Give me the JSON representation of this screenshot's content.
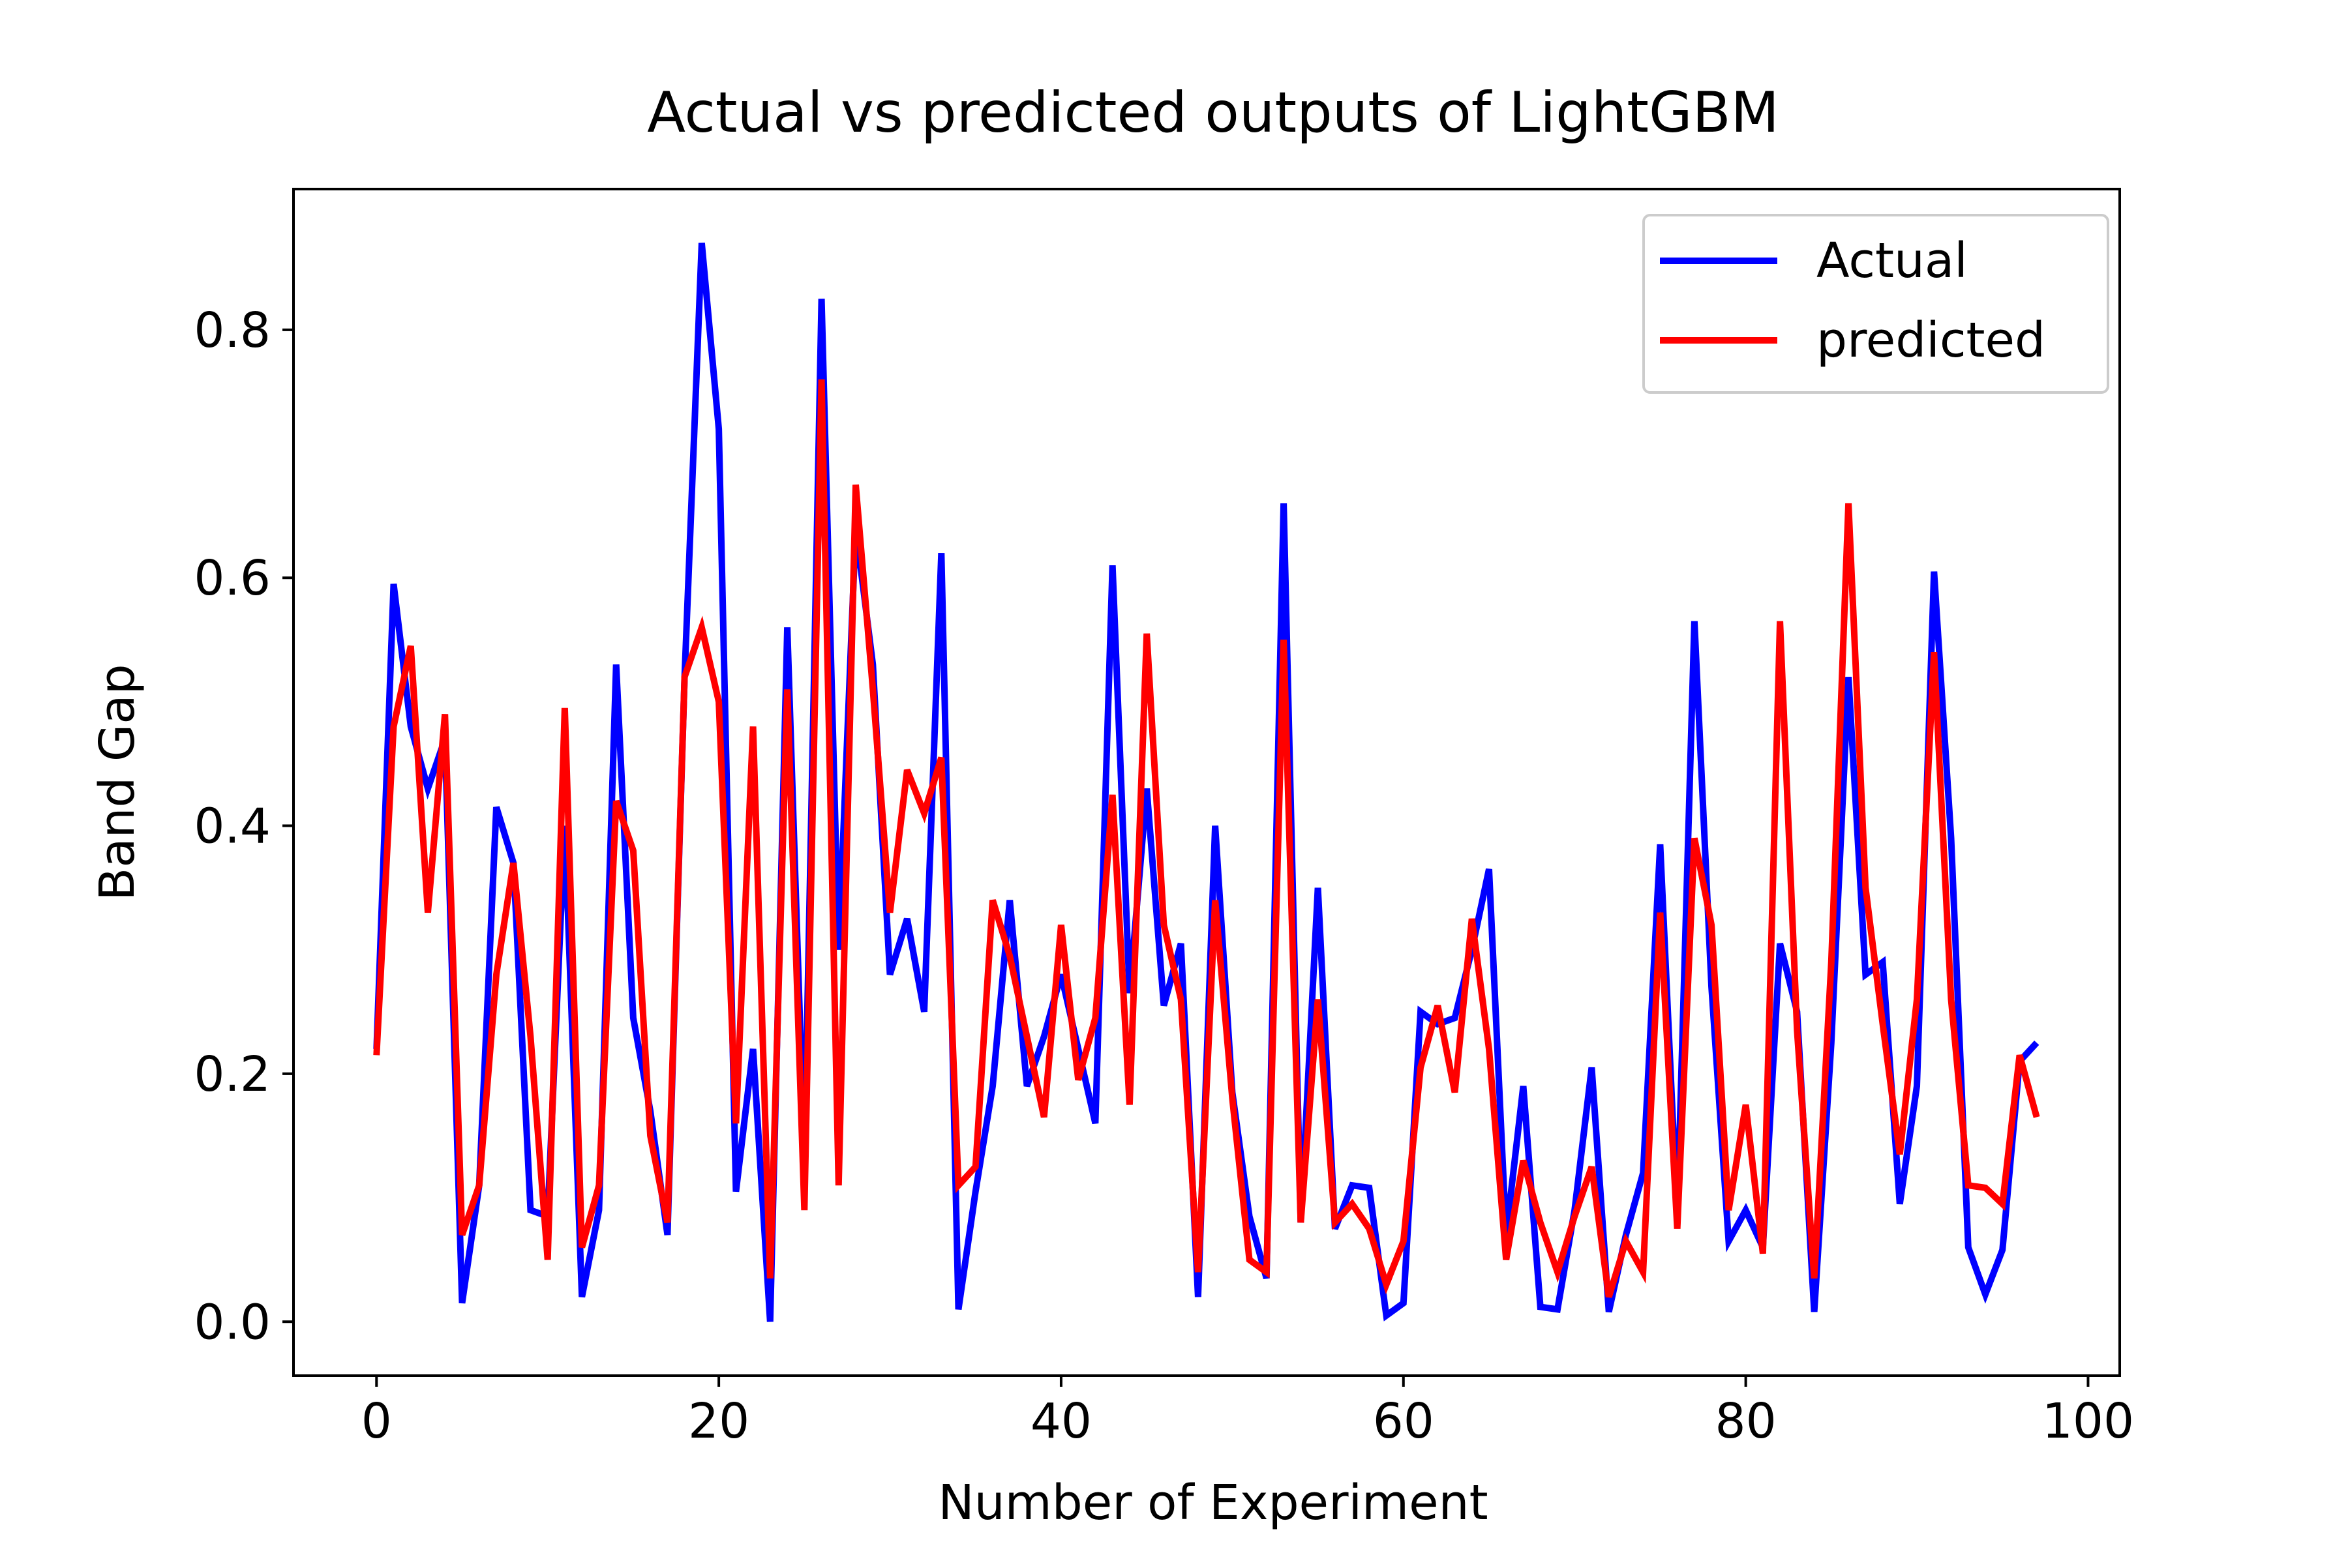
{
  "chart_data": {
    "type": "line",
    "title": "Actual vs predicted outputs of LightGBM",
    "xlabel": "Number of Experiment",
    "ylabel": "Band Gap",
    "xlim": [
      -4.85,
      101.85
    ],
    "ylim": [
      -0.0435,
      0.9135
    ],
    "xticks": [
      0,
      20,
      40,
      60,
      80,
      100
    ],
    "yticks": [
      0.0,
      0.2,
      0.4,
      0.6,
      0.8
    ],
    "xtick_labels": [
      "0",
      "20",
      "40",
      "60",
      "80",
      "100"
    ],
    "ytick_labels": [
      "0.0",
      "0.2",
      "0.4",
      "0.6",
      "0.8"
    ],
    "grid": false,
    "legend_position": "top-right",
    "x": [
      0,
      1,
      2,
      3,
      4,
      5,
      6,
      7,
      8,
      9,
      10,
      11,
      12,
      13,
      14,
      15,
      16,
      17,
      18,
      19,
      20,
      21,
      22,
      23,
      24,
      25,
      26,
      27,
      28,
      29,
      30,
      31,
      32,
      33,
      34,
      35,
      36,
      37,
      38,
      39,
      40,
      41,
      42,
      43,
      44,
      45,
      46,
      47,
      48,
      49,
      50,
      51,
      52,
      53,
      54,
      55,
      56,
      57,
      58,
      59,
      60,
      61,
      62,
      63,
      64,
      65,
      66,
      67,
      68,
      69,
      70,
      71,
      72,
      73,
      74,
      75,
      76,
      77,
      78,
      79,
      80,
      81,
      82,
      83,
      84,
      85,
      86,
      87,
      88,
      89,
      90,
      91,
      92,
      93,
      94,
      95,
      96,
      97
    ],
    "series": [
      {
        "name": "Actual",
        "color": "#0000ff",
        "values": [
          0.22,
          0.595,
          0.48,
          0.43,
          0.47,
          0.015,
          0.11,
          0.415,
          0.37,
          0.09,
          0.085,
          0.4,
          0.02,
          0.09,
          0.53,
          0.245,
          0.17,
          0.07,
          0.52,
          0.87,
          0.72,
          0.105,
          0.22,
          0.0,
          0.56,
          0.13,
          0.825,
          0.3,
          0.64,
          0.53,
          0.28,
          0.325,
          0.25,
          0.62,
          0.01,
          0.105,
          0.19,
          0.34,
          0.19,
          0.23,
          0.28,
          0.22,
          0.16,
          0.61,
          0.265,
          0.43,
          0.255,
          0.305,
          0.02,
          0.4,
          0.185,
          0.085,
          0.035,
          0.66,
          0.08,
          0.35,
          0.075,
          0.11,
          0.108,
          0.005,
          0.015,
          0.25,
          0.24,
          0.245,
          0.3,
          0.365,
          0.07,
          0.19,
          0.012,
          0.01,
          0.09,
          0.205,
          0.008,
          0.07,
          0.12,
          0.385,
          0.085,
          0.565,
          0.27,
          0.065,
          0.09,
          0.06,
          0.305,
          0.25,
          0.008,
          0.225,
          0.52,
          0.28,
          0.29,
          0.095,
          0.19,
          0.605,
          0.39,
          0.06,
          0.022,
          0.058,
          0.21,
          0.225
        ]
      },
      {
        "name": "predicted",
        "color": "#ff0000",
        "values": [
          0.215,
          0.48,
          0.545,
          0.33,
          0.49,
          0.07,
          0.11,
          0.28,
          0.37,
          0.23,
          0.05,
          0.495,
          0.06,
          0.11,
          0.42,
          0.38,
          0.15,
          0.08,
          0.52,
          0.56,
          0.5,
          0.16,
          0.48,
          0.035,
          0.51,
          0.09,
          0.76,
          0.11,
          0.675,
          0.51,
          0.33,
          0.445,
          0.41,
          0.455,
          0.11,
          0.125,
          0.34,
          0.295,
          0.23,
          0.165,
          0.32,
          0.195,
          0.245,
          0.425,
          0.175,
          0.555,
          0.32,
          0.26,
          0.04,
          0.34,
          0.18,
          0.05,
          0.04,
          0.55,
          0.08,
          0.26,
          0.08,
          0.095,
          0.075,
          0.03,
          0.065,
          0.205,
          0.255,
          0.185,
          0.325,
          0.22,
          0.05,
          0.13,
          0.08,
          0.04,
          0.085,
          0.125,
          0.02,
          0.065,
          0.04,
          0.33,
          0.075,
          0.39,
          0.32,
          0.09,
          0.175,
          0.055,
          0.565,
          0.235,
          0.035,
          0.29,
          0.66,
          0.35,
          0.24,
          0.135,
          0.26,
          0.54,
          0.26,
          0.11,
          0.108,
          0.095,
          0.215,
          0.165
        ]
      }
    ]
  }
}
